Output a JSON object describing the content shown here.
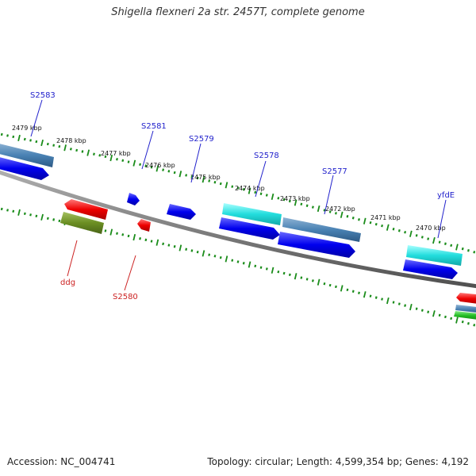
{
  "title": "Shigella flexneri 2a str. 2457T, complete genome",
  "footer": {
    "accession": "Accession: NC_004741",
    "summary": "Topology: circular; Length: 4,599,354 bp; Genes: 4,192"
  },
  "colors": {
    "backbone": "#808080",
    "tick": "#1a8c1a",
    "forward_label": "#2222cc",
    "reverse_label": "#cc2222",
    "forward_cds": "#0000ee",
    "reverse_cds": "#ee0000",
    "steelblue_feature": "#4a82b4",
    "cyan_feature": "#22dddd",
    "olive_feature": "#6b8e23"
  },
  "kbp_labels": [
    "2479 kbp",
    "2478 kbp",
    "2477 kbp",
    "2476 kbp",
    "2475 kbp",
    "2474 kbp",
    "2473 kbp",
    "2472 kbp",
    "2471 kbp",
    "2470 kbp"
  ],
  "genes_forward": [
    "S2583",
    "S2581",
    "S2579",
    "S2578",
    "S2577",
    "yfdE"
  ],
  "genes_reverse": [
    "ddg",
    "S2580"
  ]
}
